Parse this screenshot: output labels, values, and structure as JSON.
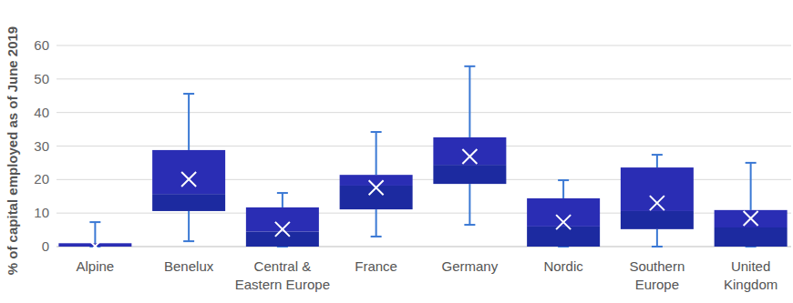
{
  "chart_data": {
    "type": "box",
    "y_label": "% of capital employed as of June 2019",
    "categories": [
      "Alpine",
      "Benelux",
      "Central & Eastern Europe",
      "France",
      "Germany",
      "Nordic",
      "Southern Europe",
      "United Kingdom"
    ],
    "min": [
      0,
      1.6,
      0,
      3,
      6.5,
      0,
      0,
      0
    ],
    "q1": [
      0,
      10.6,
      0,
      11.1,
      18.7,
      0,
      5.2,
      0
    ],
    "median": [
      0,
      15.7,
      4.5,
      18.2,
      24.4,
      6,
      10.6,
      5.7
    ],
    "q3": [
      1,
      28.8,
      11.7,
      21.4,
      32.6,
      14.4,
      23.6,
      10.9
    ],
    "max": [
      7.3,
      45.6,
      16,
      34.2,
      53.8,
      19.8,
      27.4,
      25
    ],
    "mean": [
      0.1,
      20.1,
      5.2,
      17.6,
      26.9,
      7.3,
      13,
      8.4
    ],
    "color": "#2a2db4",
    "ylim": [
      0,
      60
    ],
    "yticks": [
      0,
      10,
      20,
      30,
      40,
      50,
      60
    ],
    "grid": true
  }
}
